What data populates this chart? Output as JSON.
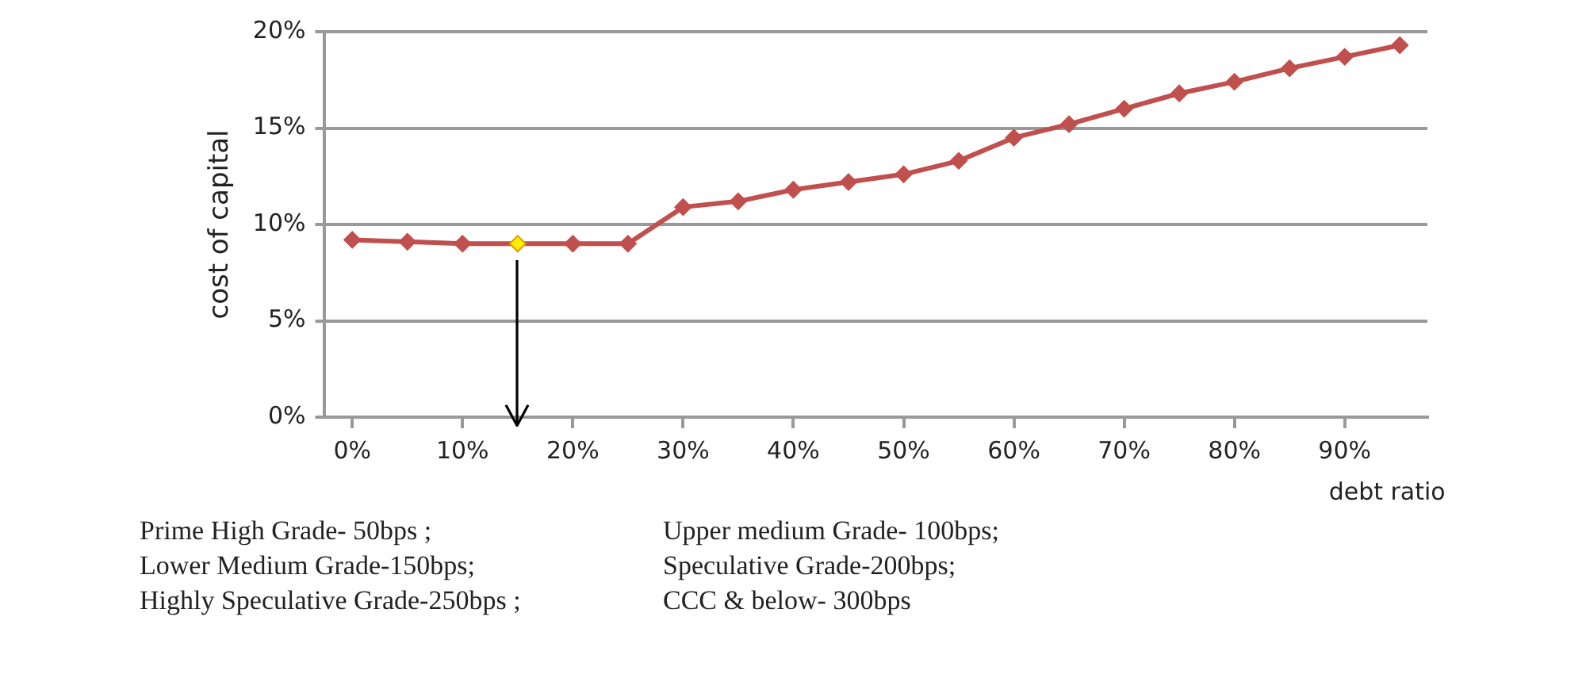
{
  "chart_data": {
    "type": "line",
    "xlabel": "debt ratio",
    "ylabel": "cost of capital",
    "x": [
      0,
      5,
      10,
      15,
      20,
      25,
      30,
      35,
      40,
      45,
      50,
      55,
      60,
      65,
      70,
      75,
      80,
      85,
      90,
      95
    ],
    "series": [
      {
        "color": "#c0504d",
        "colors": [
          "#c0504d",
          "#c0504d",
          "#c0504d",
          "#ffee00",
          "#c0504d",
          "#c0504d",
          "#c0504d",
          "#c0504d",
          "#c0504d",
          "#c0504d",
          "#c0504d",
          "#c0504d",
          "#c0504d",
          "#c0504d",
          "#c0504d",
          "#c0504d",
          "#c0504d",
          "#c0504d",
          "#c0504d",
          "#c0504d"
        ],
        "values": [
          9.2,
          9.1,
          9.0,
          9.0,
          9.0,
          9.0,
          10.9,
          11.2,
          11.8,
          12.2,
          12.6,
          13.3,
          14.5,
          15.2,
          16.0,
          16.8,
          17.4,
          18.1,
          18.7,
          19.3
        ]
      }
    ],
    "xlim": [
      -2.5,
      97.5
    ],
    "xticks": [
      {
        "value": 0,
        "label": "0%"
      },
      {
        "value": 10,
        "label": "10%"
      },
      {
        "value": 20,
        "label": "20%"
      },
      {
        "value": 30,
        "label": "30%"
      },
      {
        "value": 40,
        "label": "40%"
      },
      {
        "value": 50,
        "label": "50%"
      },
      {
        "value": 60,
        "label": "60%"
      },
      {
        "value": 70,
        "label": "70%"
      },
      {
        "value": 80,
        "label": "80%"
      },
      {
        "value": 90,
        "label": "90%"
      }
    ],
    "ylim": [
      0,
      20
    ],
    "yticks": [
      {
        "value": 0,
        "label": "0%"
      },
      {
        "value": 5,
        "label": "5%"
      },
      {
        "value": 10,
        "label": "10%"
      },
      {
        "value": 15,
        "label": "15%"
      },
      {
        "value": 20,
        "label": "20%"
      }
    ],
    "grid": "y",
    "legend": false,
    "marker": "diamond",
    "line_style": "solid",
    "annotations": [
      "Prime High Grade- 50bps ;",
      "Upper medium Grade- 100bps;",
      "Lower Medium Grade-150bps;",
      "Speculative Grade-200bps;",
      "Highly Speculative Grade-250bps ;",
      "CCC & below- 300bps"
    ]
  }
}
